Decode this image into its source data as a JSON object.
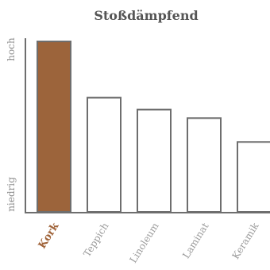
{
  "chart_data": {
    "type": "bar",
    "title": "Stoßdämpfend",
    "categories": [
      "Kork",
      "Teppich",
      "Linoleum",
      "Laminat",
      "Keramik"
    ],
    "values": [
      100,
      67,
      60,
      55,
      41
    ],
    "highlight_index": 0,
    "y_axis_labels": {
      "top": "hoch",
      "bottom": "niedrig"
    },
    "ylim": [
      0,
      100
    ],
    "colors": {
      "highlight_fill": "#9c643b",
      "bar_fill": "#ffffff",
      "bar_stroke": "#6e6e6e",
      "axis": "#6e6e6e"
    },
    "grid": false
  }
}
